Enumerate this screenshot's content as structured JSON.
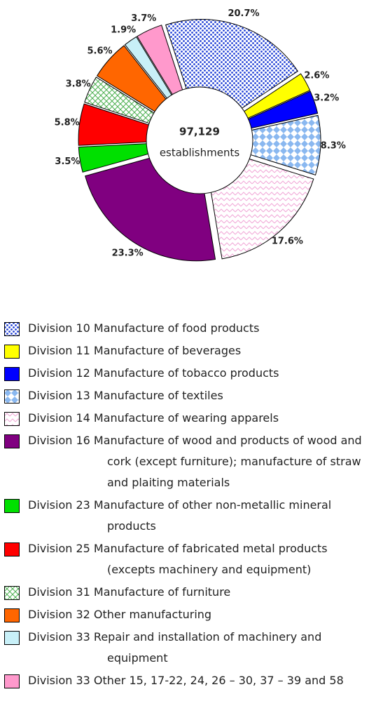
{
  "chart_data": {
    "type": "pie",
    "center_text": [
      "97,129",
      "establishments"
    ],
    "series": [
      {
        "name": "Division 10 Manufacture of food products",
        "color": "#1f3fd6",
        "pattern": "dots",
        "values": [
          20.7
        ],
        "value_labels": [
          "20.7%"
        ]
      },
      {
        "name": "Division 11 Manufacture of beverages",
        "color": "#ffff00",
        "pattern": "solid",
        "values": [
          2.6
        ],
        "value_labels": [
          "2.6%"
        ]
      },
      {
        "name": "Division 12 Manufacture of tobacco products",
        "color": "#0000ff",
        "pattern": "solid",
        "values": [
          3.2
        ],
        "value_labels": [
          "3.2%"
        ]
      },
      {
        "name": "Division 13 Manufacture of textiles",
        "color": "#8ab8f0",
        "pattern": "checker",
        "values": [
          8.3
        ],
        "value_labels": [
          "8.3%"
        ]
      },
      {
        "name": "Division 14 Manufacture of wearing apparels",
        "color": "#f2a8d8",
        "pattern": "zigzag",
        "values": [
          17.6
        ],
        "value_labels": [
          "17.6%"
        ]
      },
      {
        "name": "Division 16 Manufacture of wood and products of wood and cork (except furniture); manufacture of straw and plaiting materials",
        "color": "#800080",
        "pattern": "solid",
        "values": [
          23.3
        ],
        "value_labels": [
          "23.3%"
        ]
      },
      {
        "name": "Division 23 Manufacture of other non-metallic mineral products",
        "color": "#00e000",
        "pattern": "solid",
        "values": [
          3.5
        ],
        "value_labels": [
          "3.5%"
        ]
      },
      {
        "name": "Division 25 Manufacture of fabricated metal products (excepts machinery and equipment)",
        "color": "#ff0000",
        "pattern": "solid",
        "values": [
          5.8
        ],
        "value_labels": [
          "5.8%"
        ]
      },
      {
        "name": "Division 31 Manufacture of furniture",
        "color": "#4caf50",
        "pattern": "hatch",
        "values": [
          3.8
        ],
        "value_labels": [
          "3.8%"
        ]
      },
      {
        "name": "Division 32 Other manufacturing",
        "color": "#ff6600",
        "pattern": "solid",
        "values": [
          5.6
        ],
        "value_labels": [
          "5.6%"
        ]
      },
      {
        "name": "Division 33 Repair and installation of machinery and equipment",
        "color": "#c8f0f8",
        "pattern": "solid",
        "values": [
          1.9
        ],
        "value_labels": [
          "1.9%"
        ]
      },
      {
        "name": "Division 33 Other 15, 17-22, 24, 26 – 30, 37 – 39 and 58",
        "color": "#ff99cc",
        "pattern": "solid",
        "values": [
          3.7
        ],
        "value_labels": [
          "3.7%"
        ]
      }
    ]
  }
}
